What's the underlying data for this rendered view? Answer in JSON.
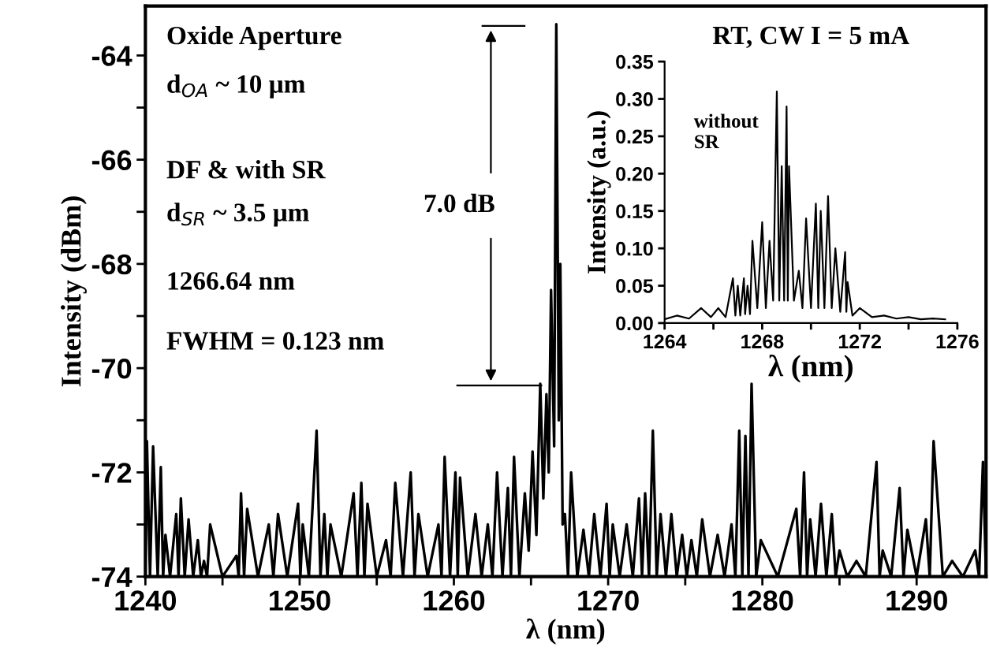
{
  "chart_data": [
    {
      "type": "line",
      "xlabel": "λ (nm)",
      "ylabel": "Intensity (dBm)",
      "xlim": [
        1240,
        1294.5
      ],
      "ylim": [
        -74,
        -63.05
      ],
      "xticks": [
        1240,
        {
          "value": 1245,
          "label": null
        },
        1250,
        {
          "value": 1255,
          "label": null
        },
        1260,
        {
          "value": 1265,
          "label": null
        },
        1270,
        {
          "value": 1275,
          "label": null
        },
        1280,
        {
          "value": 1285,
          "label": null
        },
        1290
      ],
      "yticks": [
        -74,
        {
          "value": -73,
          "label": null
        },
        -72,
        {
          "value": -71,
          "label": null
        },
        -70,
        {
          "value": -69,
          "label": null
        },
        -68,
        {
          "value": -67,
          "label": null
        },
        -66,
        {
          "value": -65,
          "label": null
        },
        -64
      ],
      "grid": false,
      "legend": false,
      "marker": "none",
      "line_style": "solid",
      "annotations": [
        "Oxide Aperture",
        "d$_{OA}$ ~ 10 μm",
        "DF & with SR",
        "d$_{SR}$ ~ 3.5 μm",
        "1266.64 nm",
        "FWHM = 0.123 nm",
        "7.0 dB"
      ],
      "series": [
        {
          "color": "#000000",
          "x": [
            1240.0,
            1240.1,
            1240.3,
            1240.5,
            1240.8,
            1241.0,
            1241.15,
            1241.3,
            1241.6,
            1242.0,
            1242.15,
            1242.3,
            1242.55,
            1242.8,
            1243.1,
            1243.4,
            1243.6,
            1243.8,
            1244.0,
            1244.2,
            1245.0,
            1245.9,
            1246.05,
            1246.2,
            1246.4,
            1246.6,
            1247.3,
            1248.0,
            1248.3,
            1248.6,
            1249.2,
            1249.9,
            1250.05,
            1250.2,
            1250.6,
            1251.1,
            1251.35,
            1251.6,
            1251.8,
            1252.0,
            1252.7,
            1253.5,
            1253.75,
            1254.0,
            1254.2,
            1254.4,
            1255.0,
            1255.6,
            1255.9,
            1256.2,
            1256.7,
            1257.2,
            1257.45,
            1257.7,
            1258.3,
            1259.0,
            1259.2,
            1259.4,
            1259.75,
            1260.1,
            1260.25,
            1260.4,
            1260.9,
            1261.4,
            1261.8,
            1262.2,
            1262.5,
            1262.8,
            1263.15,
            1263.5,
            1263.7,
            1263.9,
            1264.25,
            1264.6,
            1264.85,
            1265.1,
            1265.35,
            1265.6,
            1265.8,
            1266.0,
            1266.15,
            1266.3,
            1266.5,
            1266.64,
            1266.8,
            1266.9,
            1267.05,
            1267.2,
            1267.4,
            1267.6,
            1268.0,
            1268.4,
            1268.75,
            1269.1,
            1269.5,
            1269.9,
            1270.1,
            1270.3,
            1270.75,
            1271.2,
            1271.6,
            1272.0,
            1272.2,
            1272.4,
            1272.65,
            1272.9,
            1273.15,
            1273.4,
            1273.75,
            1274.1,
            1274.45,
            1274.8,
            1275.1,
            1275.4,
            1275.75,
            1276.1,
            1276.6,
            1277.1,
            1277.55,
            1278.0,
            1278.25,
            1278.5,
            1278.7,
            1278.9,
            1279.1,
            1279.3,
            1279.6,
            1279.9,
            1281.0,
            1282.2,
            1282.45,
            1282.7,
            1282.9,
            1283.1,
            1283.45,
            1283.8,
            1284.15,
            1284.5,
            1284.75,
            1285.0,
            1285.5,
            1286.1,
            1286.7,
            1287.4,
            1287.6,
            1287.8,
            1288.35,
            1288.9,
            1289.15,
            1289.4,
            1290.0,
            1290.6,
            1290.85,
            1291.1,
            1291.7,
            1292.3,
            1293.0,
            1293.8,
            1294.05,
            1294.3,
            1294.5
          ],
          "values": [
            -74,
            -71.4,
            -74,
            -71.5,
            -74,
            -71.9,
            -74,
            -73.2,
            -74,
            -72.8,
            -74,
            -72.5,
            -74,
            -72.9,
            -74,
            -73.3,
            -74,
            -73.7,
            -74,
            -73.0,
            -74,
            -73.6,
            -74,
            -72.4,
            -74,
            -72.7,
            -74,
            -73.0,
            -74,
            -72.8,
            -74,
            -72.6,
            -74,
            -73.0,
            -74,
            -71.2,
            -74,
            -72.8,
            -74,
            -73.0,
            -74,
            -72.4,
            -74,
            -72.2,
            -74,
            -72.6,
            -74,
            -73.3,
            -74,
            -72.2,
            -74,
            -72.0,
            -74,
            -72.8,
            -74,
            -73.0,
            -74,
            -71.7,
            -74,
            -72.0,
            -74,
            -72.1,
            -74,
            -72.8,
            -74,
            -73.0,
            -74,
            -72.0,
            -74,
            -72.3,
            -74,
            -71.7,
            -74,
            -72.4,
            -73.5,
            -71.6,
            -73.2,
            -70.3,
            -72.5,
            -70.5,
            -72.0,
            -68.5,
            -71.5,
            -63.4,
            -71.0,
            -68.0,
            -73.0,
            -72.8,
            -74,
            -72.0,
            -74,
            -73.1,
            -74,
            -72.8,
            -74,
            -72.6,
            -74,
            -73.0,
            -74,
            -73.0,
            -74,
            -72.5,
            -74,
            -72.4,
            -74,
            -71.2,
            -74,
            -72.8,
            -74,
            -72.8,
            -74,
            -73.2,
            -74,
            -73.3,
            -74,
            -72.9,
            -74,
            -73.2,
            -74,
            -73.0,
            -74,
            -71.2,
            -74,
            -71.3,
            -74,
            -70.3,
            -74,
            -73.3,
            -74,
            -72.7,
            -74,
            -72.0,
            -74,
            -72.9,
            -74,
            -72.6,
            -74,
            -72.8,
            -74,
            -73.5,
            -74,
            -73.7,
            -74,
            -71.8,
            -74,
            -73.5,
            -74,
            -72.3,
            -74,
            -73.1,
            -74,
            -72.9,
            -74,
            -71.4,
            -74,
            -73.7,
            -74,
            -73.5,
            -74,
            -71.8,
            -74
          ]
        }
      ]
    },
    {
      "type": "line",
      "title": "RT, CW I = 5 mA",
      "xlabel": "λ (nm)",
      "ylabel": "Intensity (a.u.)",
      "xlim": [
        1264,
        1276
      ],
      "ylim": [
        0,
        0.35
      ],
      "xticks": [
        1264,
        {
          "value": 1266,
          "label": null
        },
        1268,
        {
          "value": 1270,
          "label": null
        },
        1272,
        {
          "value": 1274,
          "label": null
        },
        1276
      ],
      "yticks": [
        {
          "value": 0,
          "label": "0.00"
        },
        0.05,
        {
          "value": 0.1,
          "label": "0.10"
        },
        0.15,
        {
          "value": 0.2,
          "label": "0.20"
        },
        0.25,
        {
          "value": 0.3,
          "label": "0.30"
        },
        0.35
      ],
      "grid": false,
      "legend": false,
      "marker": "none",
      "line_style": "solid",
      "annotations": [
        "without\nSR"
      ],
      "series": [
        {
          "color": "#000000",
          "x": [
            1264.0,
            1264.5,
            1265.0,
            1265.5,
            1265.9,
            1266.2,
            1266.5,
            1266.8,
            1266.9,
            1267.0,
            1267.1,
            1267.25,
            1267.3,
            1267.4,
            1267.5,
            1267.6,
            1267.8,
            1268.0,
            1268.15,
            1268.3,
            1268.45,
            1268.6,
            1268.7,
            1268.8,
            1268.9,
            1269.0,
            1269.05,
            1269.1,
            1269.3,
            1269.5,
            1269.65,
            1269.8,
            1270.0,
            1270.2,
            1270.3,
            1270.4,
            1270.55,
            1270.7,
            1270.85,
            1271.0,
            1271.2,
            1271.4,
            1271.45,
            1271.5,
            1271.7,
            1272.0,
            1272.5,
            1273.0,
            1273.5,
            1274.0,
            1274.5,
            1275.0,
            1275.5
          ],
          "values": [
            0.005,
            0.01,
            0.006,
            0.02,
            0.008,
            0.02,
            0.008,
            0.06,
            0.01,
            0.05,
            0.01,
            0.06,
            0.012,
            0.05,
            0.012,
            0.11,
            0.02,
            0.135,
            0.02,
            0.11,
            0.03,
            0.31,
            0.03,
            0.21,
            0.03,
            0.29,
            0.03,
            0.21,
            0.03,
            0.07,
            0.02,
            0.14,
            0.02,
            0.16,
            0.02,
            0.15,
            0.02,
            0.17,
            0.02,
            0.1,
            0.015,
            0.095,
            0.015,
            0.055,
            0.01,
            0.02,
            0.008,
            0.01,
            0.006,
            0.008,
            0.005,
            0.006,
            0.005
          ]
        }
      ]
    }
  ]
}
